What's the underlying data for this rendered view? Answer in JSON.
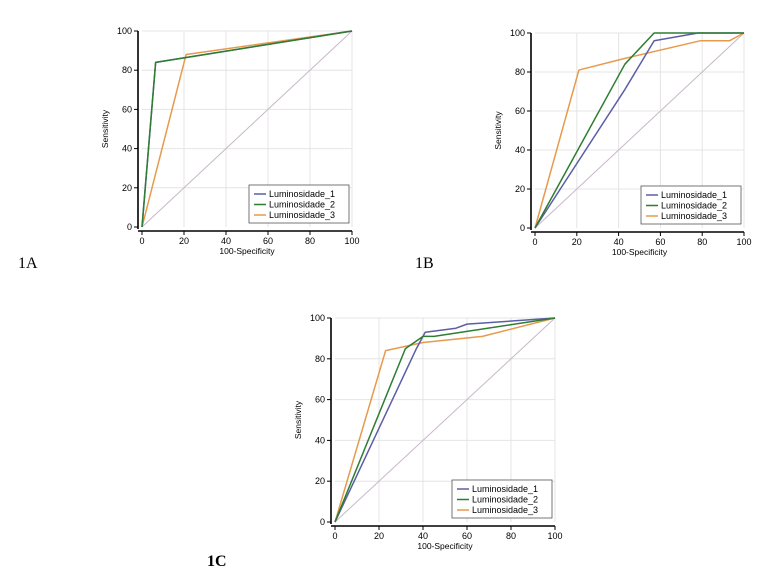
{
  "panels": [
    {
      "id": "A",
      "label": "1A"
    },
    {
      "id": "B",
      "label": "1B"
    },
    {
      "id": "C",
      "label": "1C"
    }
  ],
  "colors": {
    "series_1": "#5b5ea6",
    "series_2": "#2e7d32",
    "series_3": "#e69a4c",
    "diagonal": "#c8b8c8",
    "grid": "#e4e4e4",
    "axis": "#000000"
  },
  "chart_data": [
    {
      "type": "line",
      "panel": "1A",
      "title": "",
      "xlabel": "100-Specificity",
      "ylabel": "Sensitivity",
      "xlim": [
        0,
        100
      ],
      "ylim": [
        0,
        100
      ],
      "xticks": [
        0,
        20,
        40,
        60,
        80,
        100
      ],
      "yticks": [
        0,
        20,
        40,
        60,
        80,
        100
      ],
      "grid": true,
      "legend_position": "bottom-right",
      "series": [
        {
          "name": "Luminosidade_1",
          "x": [
            0,
            6.5,
            100
          ],
          "y": [
            0,
            84,
            100
          ]
        },
        {
          "name": "Luminosidade_2",
          "x": [
            0,
            6.5,
            100
          ],
          "y": [
            0,
            84,
            100
          ]
        },
        {
          "name": "Luminosidade_3",
          "x": [
            0,
            21,
            100
          ],
          "y": [
            0,
            88,
            100
          ]
        }
      ]
    },
    {
      "type": "line",
      "panel": "1B",
      "title": "",
      "xlabel": "100-Specificity",
      "ylabel": "Sensitivity",
      "xlim": [
        0,
        100
      ],
      "ylim": [
        0,
        100
      ],
      "xticks": [
        0,
        20,
        40,
        60,
        80,
        100
      ],
      "yticks": [
        0,
        20,
        40,
        60,
        80,
        100
      ],
      "grid": true,
      "legend_position": "bottom-right",
      "series": [
        {
          "name": "Luminosidade_1",
          "x": [
            0,
            43,
            57,
            78,
            100
          ],
          "y": [
            0,
            71,
            96,
            100,
            100
          ]
        },
        {
          "name": "Luminosidade_2",
          "x": [
            0,
            43,
            57,
            100
          ],
          "y": [
            0,
            84,
            100,
            100
          ]
        },
        {
          "name": "Luminosidade_3",
          "x": [
            0,
            21,
            43,
            79,
            93,
            100
          ],
          "y": [
            0,
            81,
            87,
            96,
            96,
            100
          ]
        }
      ]
    },
    {
      "type": "line",
      "panel": "1C",
      "title": "",
      "xlabel": "100-Specificity",
      "ylabel": "Sensitivity",
      "xlim": [
        0,
        100
      ],
      "ylim": [
        0,
        100
      ],
      "xticks": [
        0,
        20,
        40,
        60,
        80,
        100
      ],
      "yticks": [
        0,
        20,
        40,
        60,
        80,
        100
      ],
      "grid": true,
      "legend_position": "bottom-right",
      "series": [
        {
          "name": "Luminosidade_1",
          "x": [
            0,
            37,
            41,
            55,
            60,
            100
          ],
          "y": [
            0,
            85,
            93,
            95,
            97,
            100
          ]
        },
        {
          "name": "Luminosidade_2",
          "x": [
            0,
            32,
            40,
            45,
            100
          ],
          "y": [
            0,
            85,
            91,
            91,
            100
          ]
        },
        {
          "name": "Luminosidade_3",
          "x": [
            0,
            23,
            40,
            67,
            100
          ],
          "y": [
            0,
            84,
            88,
            91,
            100
          ]
        }
      ]
    }
  ]
}
